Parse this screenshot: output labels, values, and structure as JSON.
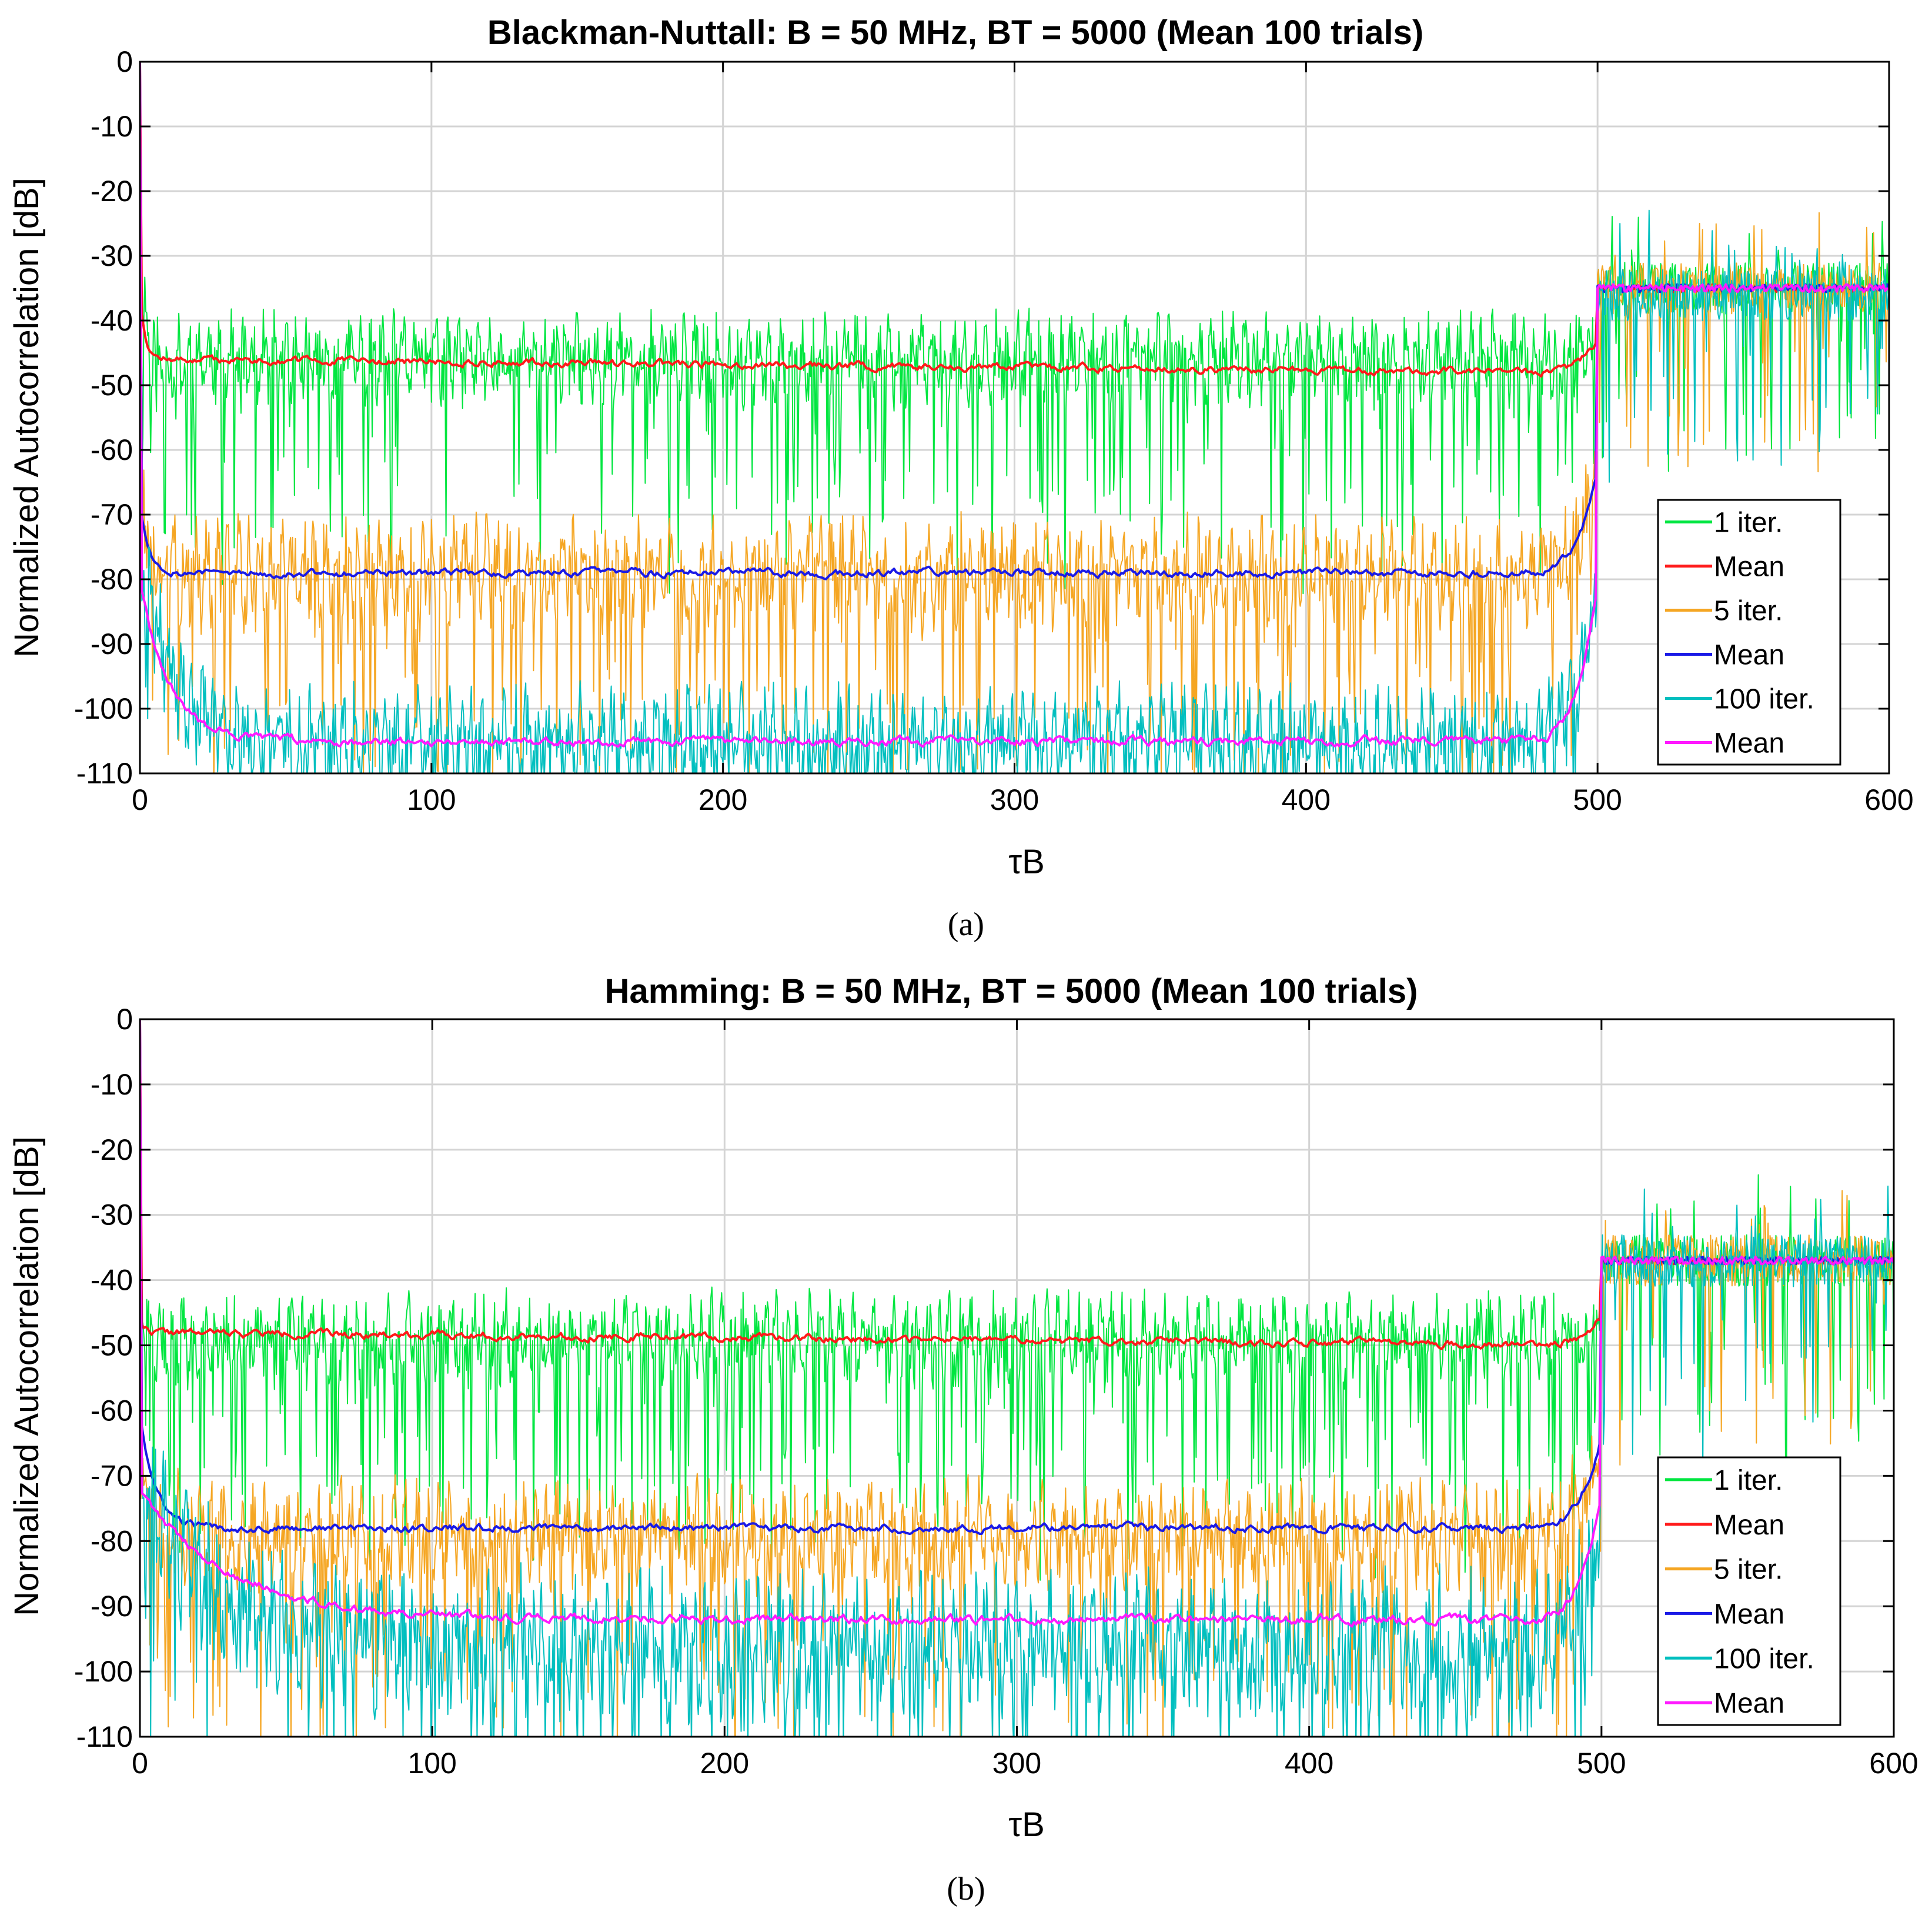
{
  "chart_data": [
    {
      "id": "a",
      "type": "line",
      "title": "Blackman-Nuttall: B = 50 MHz, BT = 5000 (Mean 100 trials)",
      "caption": "(a)",
      "xlabel": "τB",
      "ylabel": "Normalized Autocorrelation [dB]",
      "xlim": [
        0,
        600
      ],
      "ylim": [
        -110,
        0
      ],
      "xticks": [
        0,
        100,
        200,
        300,
        400,
        500,
        600
      ],
      "yticks": [
        0,
        -10,
        -20,
        -30,
        -40,
        -50,
        -60,
        -70,
        -80,
        -90,
        -100,
        -110
      ],
      "grid": true,
      "legend_position": "lower-right",
      "series": [
        {
          "name": "1 iter.",
          "color": "#00e640",
          "kind": "noisy",
          "start": -30,
          "level": -46,
          "decay": 2,
          "after": -35,
          "amp": 5,
          "dip": 0.12,
          "seed": 11,
          "stroke": 2
        },
        {
          "name": "Mean",
          "color": "#ff1a1a",
          "kind": "mean",
          "start": -36,
          "level": -46,
          "end_level": -48,
          "decay": 2,
          "after": -35,
          "amp": 0.7,
          "seed": 12,
          "stroke": 4
        },
        {
          "name": "5 iter.",
          "color": "#f5a623",
          "kind": "noisy",
          "start": -65,
          "level": -79,
          "decay": 3,
          "after": -35,
          "amp": 6,
          "dip": 0.12,
          "seed": 13,
          "stroke": 2
        },
        {
          "name": "Mean",
          "color": "#1a1ae6",
          "kind": "mean",
          "start": -68,
          "level": -79,
          "decay": 3,
          "after": -35,
          "amp": 0.7,
          "seed": 14,
          "stroke": 4
        },
        {
          "name": "100 iter.",
          "color": "#00bfbf",
          "kind": "noisy",
          "start": -75,
          "level": -105,
          "decay": 10,
          "after": -36,
          "amp": 6,
          "dip": 0.05,
          "seed": 15,
          "stroke": 2
        },
        {
          "name": "Mean",
          "color": "#ff1aff",
          "kind": "mean",
          "start": -80,
          "level": -105,
          "decay": 10,
          "after": -35,
          "amp": 0.8,
          "seed": 16,
          "stroke": 4
        }
      ]
    },
    {
      "id": "b",
      "type": "line",
      "title": "Hamming: B = 50 MHz, BT = 5000 (Mean 100 trials)",
      "caption": "(b)",
      "xlabel": "τB",
      "ylabel": "Normalized Autocorrelation [dB]",
      "xlim": [
        0,
        600
      ],
      "ylim": [
        -110,
        0
      ],
      "xticks": [
        0,
        100,
        200,
        300,
        400,
        500,
        600
      ],
      "yticks": [
        0,
        -10,
        -20,
        -30,
        -40,
        -50,
        -60,
        -70,
        -80,
        -90,
        -100,
        -110
      ],
      "grid": true,
      "legend_position": "lower-right",
      "series": [
        {
          "name": "1 iter.",
          "color": "#00e640",
          "kind": "noisy",
          "start": -40,
          "level": -49,
          "decay": 2,
          "after": -37,
          "amp": 5,
          "dip": 0.15,
          "seed": 21,
          "stroke": 2
        },
        {
          "name": "Mean",
          "color": "#ff1a1a",
          "kind": "mean",
          "start": -46,
          "level": -48,
          "end_level": -50,
          "decay": 2,
          "after": -37,
          "amp": 0.7,
          "seed": 22,
          "stroke": 4
        },
        {
          "name": "5 iter.",
          "color": "#f5a623",
          "kind": "noisy",
          "start": -66,
          "level": -79,
          "decay": 5,
          "after": -37,
          "amp": 6,
          "dip": 0.1,
          "seed": 23,
          "stroke": 2
        },
        {
          "name": "Mean",
          "color": "#1a1ae6",
          "kind": "mean",
          "start": -60,
          "level": -78,
          "decay": 5,
          "after": -37,
          "amp": 0.7,
          "seed": 24,
          "stroke": 4
        },
        {
          "name": "100 iter.",
          "color": "#00bfbf",
          "kind": "noisy",
          "start": -70,
          "level": -96,
          "decay": 25,
          "after": -37,
          "amp": 8,
          "dip": 0.08,
          "seed": 25,
          "stroke": 2
        },
        {
          "name": "Mean",
          "color": "#ff1aff",
          "kind": "mean",
          "start": -72,
          "level": -92,
          "decay": 30,
          "after": -37,
          "amp": 0.8,
          "seed": 26,
          "stroke": 4
        }
      ]
    }
  ]
}
